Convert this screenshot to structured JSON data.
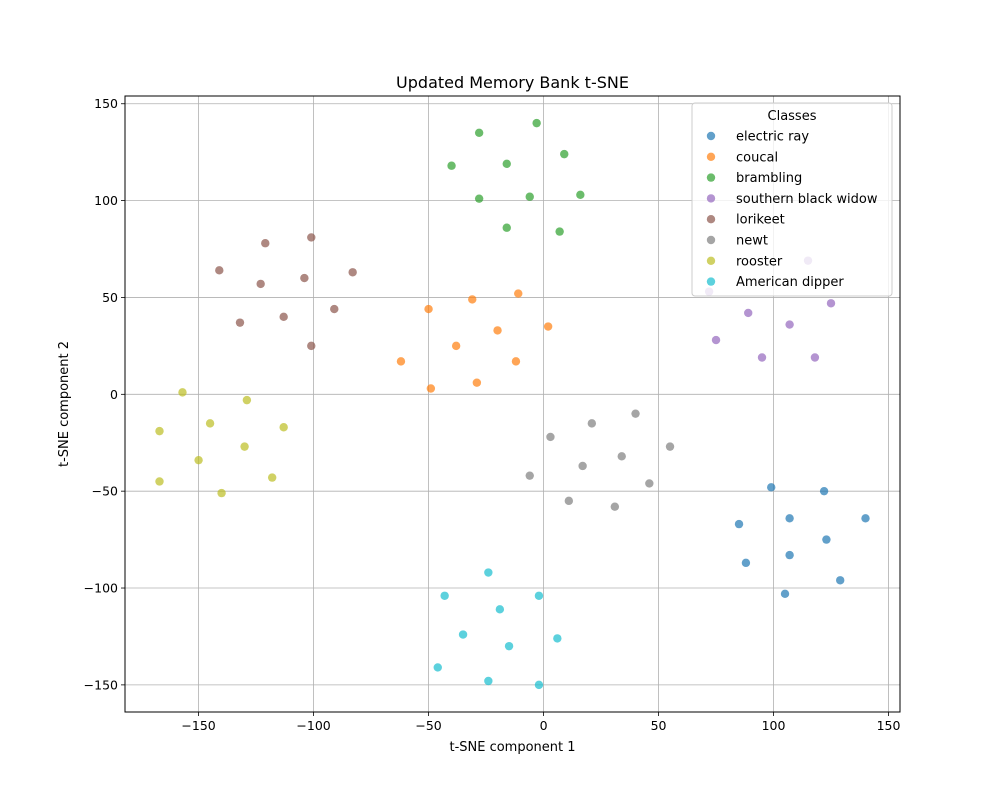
{
  "chart_data": {
    "type": "scatter",
    "title": "Updated Memory Bank t-SNE",
    "xlabel": "t-SNE component 1",
    "ylabel": "t-SNE component 2",
    "xlim": [
      -182,
      155
    ],
    "ylim": [
      -164,
      154
    ],
    "xticks": [
      -150,
      -100,
      -50,
      0,
      50,
      100,
      150
    ],
    "yticks": [
      150,
      100,
      50,
      0,
      -50,
      -100,
      -150
    ],
    "grid": true,
    "legend": {
      "title": "Classes",
      "placement": "top-right"
    },
    "series": [
      {
        "name": "electric ray",
        "color": "#1f77b4",
        "points": [
          [
            99,
            -48
          ],
          [
            122,
            -50
          ],
          [
            85,
            -67
          ],
          [
            107,
            -64
          ],
          [
            140,
            -64
          ],
          [
            123,
            -75
          ],
          [
            107,
            -83
          ],
          [
            88,
            -87
          ],
          [
            129,
            -96
          ],
          [
            105,
            -103
          ]
        ]
      },
      {
        "name": "coucal",
        "color": "#ff7f0e",
        "points": [
          [
            -31,
            49
          ],
          [
            -11,
            52
          ],
          [
            -50,
            44
          ],
          [
            -20,
            33
          ],
          [
            2,
            35
          ],
          [
            -38,
            25
          ],
          [
            -62,
            17
          ],
          [
            -12,
            17
          ],
          [
            -29,
            6
          ],
          [
            -49,
            3
          ]
        ]
      },
      {
        "name": "brambling",
        "color": "#2ca02c",
        "points": [
          [
            -28,
            135
          ],
          [
            -3,
            140
          ],
          [
            9,
            124
          ],
          [
            -40,
            118
          ],
          [
            -16,
            119
          ],
          [
            -28,
            101
          ],
          [
            -6,
            102
          ],
          [
            16,
            103
          ],
          [
            -16,
            86
          ],
          [
            7,
            84
          ]
        ]
      },
      {
        "name": "southern black widow",
        "color": "#9467bd",
        "points": [
          [
            115,
            69
          ],
          [
            72,
            53
          ],
          [
            125,
            47
          ],
          [
            89,
            42
          ],
          [
            107,
            36
          ],
          [
            75,
            28
          ],
          [
            95,
            19
          ],
          [
            118,
            19
          ]
        ]
      },
      {
        "name": "lorikeet",
        "color": "#8c564b",
        "points": [
          [
            -121,
            78
          ],
          [
            -101,
            81
          ],
          [
            -141,
            64
          ],
          [
            -104,
            60
          ],
          [
            -83,
            63
          ],
          [
            -123,
            57
          ],
          [
            -91,
            44
          ],
          [
            -132,
            37
          ],
          [
            -113,
            40
          ],
          [
            -101,
            25
          ]
        ]
      },
      {
        "name": "newt",
        "color": "#7f7f7f",
        "points": [
          [
            40,
            -10
          ],
          [
            21,
            -15
          ],
          [
            3,
            -22
          ],
          [
            55,
            -27
          ],
          [
            34,
            -32
          ],
          [
            17,
            -37
          ],
          [
            -6,
            -42
          ],
          [
            46,
            -46
          ],
          [
            11,
            -55
          ],
          [
            31,
            -58
          ]
        ]
      },
      {
        "name": "rooster",
        "color": "#bcbd22",
        "points": [
          [
            -157,
            1
          ],
          [
            -129,
            -3
          ],
          [
            -145,
            -15
          ],
          [
            -113,
            -17
          ],
          [
            -167,
            -19
          ],
          [
            -130,
            -27
          ],
          [
            -150,
            -34
          ],
          [
            -118,
            -43
          ],
          [
            -167,
            -45
          ],
          [
            -140,
            -51
          ]
        ]
      },
      {
        "name": "American dipper",
        "color": "#17becf",
        "points": [
          [
            -24,
            -92
          ],
          [
            -43,
            -104
          ],
          [
            -2,
            -104
          ],
          [
            -19,
            -111
          ],
          [
            -35,
            -124
          ],
          [
            6,
            -126
          ],
          [
            -15,
            -130
          ],
          [
            -46,
            -141
          ],
          [
            -24,
            -148
          ],
          [
            -2,
            -150
          ]
        ]
      }
    ]
  }
}
